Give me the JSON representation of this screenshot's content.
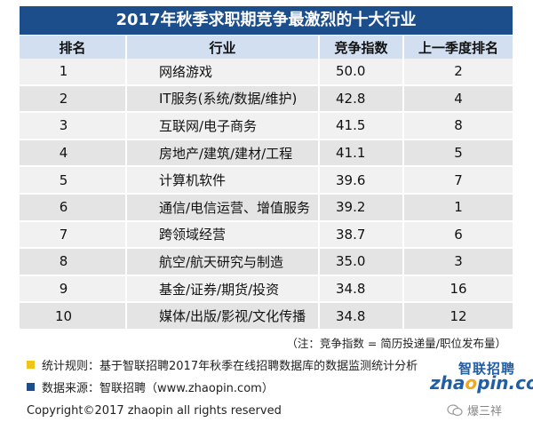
{
  "title": "2017年秋季求职期竞争最激烈的十大行业",
  "chart_data": {
    "type": "table",
    "columns": [
      "排名",
      "行业",
      "竞争指数",
      "上一季度排名"
    ],
    "rows": [
      {
        "rank": "1",
        "industry": "网络游戏",
        "index": "50.0",
        "prev_rank": "2"
      },
      {
        "rank": "2",
        "industry": "IT服务(系统/数据/维护)",
        "index": "42.8",
        "prev_rank": "4"
      },
      {
        "rank": "3",
        "industry": "互联网/电子商务",
        "index": "41.5",
        "prev_rank": "8"
      },
      {
        "rank": "4",
        "industry": "房地产/建筑/建材/工程",
        "index": "41.1",
        "prev_rank": "5"
      },
      {
        "rank": "5",
        "industry": "计算机软件",
        "index": "39.6",
        "prev_rank": "7"
      },
      {
        "rank": "6",
        "industry": "通信/电信运营、增值服务",
        "index": "39.2",
        "prev_rank": "1"
      },
      {
        "rank": "7",
        "industry": "跨领域经营",
        "index": "38.7",
        "prev_rank": "6"
      },
      {
        "rank": "8",
        "industry": "航空/航天研究与制造",
        "index": "35.0",
        "prev_rank": "3"
      },
      {
        "rank": "9",
        "industry": "基金/证券/期货/投资",
        "index": "34.8",
        "prev_rank": "16"
      },
      {
        "rank": "10",
        "industry": "媒体/出版/影视/文化传播",
        "index": "34.8",
        "prev_rank": "12"
      }
    ]
  },
  "note": "（注：竞争指数 = 简历投递量/职位发布量）",
  "legend": [
    {
      "color": "#f0c419",
      "text": "统计规则：基于智联招聘2017年秋季在线招聘数据库的数据监测统计分析"
    },
    {
      "color": "#1d4e8c",
      "text": "数据来源：智联招聘（www.zhaopin.com）"
    }
  ],
  "logo": {
    "cn": "智联招聘",
    "en_pre": "zha",
    "en_o": "o",
    "en_post": "pin.com"
  },
  "copyright": "Copyright©2017 zhaopin all rights reserved",
  "watermark": "爆三祥",
  "colors": {
    "header_bar": "#1d4e8c",
    "header_row": "#d2dff0",
    "row_light": "#f1f1f1",
    "row_dark": "#e4e4e4",
    "accent_yellow": "#f0c419"
  }
}
